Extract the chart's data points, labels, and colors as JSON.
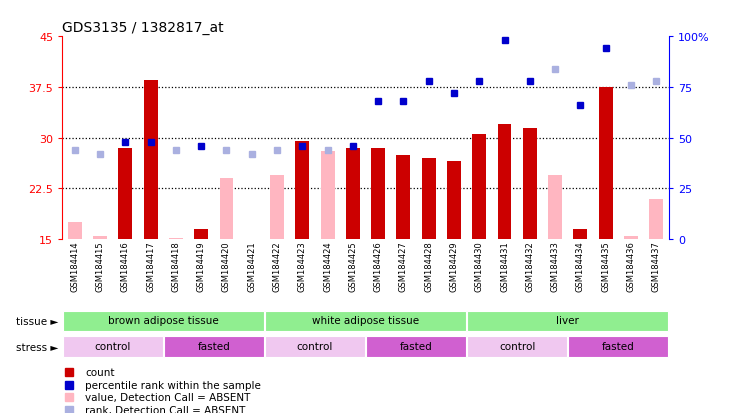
{
  "title": "GDS3135 / 1382817_at",
  "samples": [
    "GSM184414",
    "GSM184415",
    "GSM184416",
    "GSM184417",
    "GSM184418",
    "GSM184419",
    "GSM184420",
    "GSM184421",
    "GSM184422",
    "GSM184423",
    "GSM184424",
    "GSM184425",
    "GSM184426",
    "GSM184427",
    "GSM184428",
    "GSM184429",
    "GSM184430",
    "GSM184431",
    "GSM184432",
    "GSM184433",
    "GSM184434",
    "GSM184435",
    "GSM184436",
    "GSM184437"
  ],
  "count_present": [
    null,
    null,
    28.5,
    38.5,
    null,
    16.5,
    null,
    null,
    null,
    29.5,
    null,
    28.5,
    28.5,
    27.5,
    27.0,
    26.5,
    30.5,
    32.0,
    31.5,
    null,
    16.5,
    37.5,
    null,
    null
  ],
  "count_absent": [
    17.5,
    15.5,
    null,
    null,
    15.2,
    null,
    24.0,
    null,
    24.5,
    null,
    28.0,
    null,
    null,
    null,
    null,
    null,
    null,
    null,
    null,
    24.5,
    null,
    null,
    15.5,
    21.0
  ],
  "rank_present": [
    null,
    null,
    48,
    48,
    null,
    46,
    null,
    null,
    null,
    46,
    null,
    46,
    68,
    68,
    78,
    72,
    78,
    98,
    78,
    null,
    66,
    94,
    null,
    null
  ],
  "rank_absent": [
    44,
    42,
    null,
    null,
    44,
    null,
    44,
    42,
    44,
    null,
    44,
    null,
    null,
    null,
    null,
    null,
    null,
    null,
    null,
    84,
    null,
    null,
    76,
    78
  ],
  "ylim_left": [
    15,
    45
  ],
  "ylim_right": [
    0,
    100
  ],
  "yticks_left": [
    15,
    22.5,
    30,
    37.5,
    45
  ],
  "yticks_right": [
    0,
    25,
    50,
    75,
    100
  ],
  "color_present_bar": "#cc0000",
  "color_absent_bar": "#ffb6c1",
  "color_present_rank": "#0000cc",
  "color_absent_rank": "#aab0e0",
  "bar_width": 0.55,
  "tissue_groups": [
    {
      "label": "brown adipose tissue",
      "start": 0,
      "end": 8
    },
    {
      "label": "white adipose tissue",
      "start": 8,
      "end": 16
    },
    {
      "label": "liver",
      "start": 16,
      "end": 24
    }
  ],
  "stress_groups": [
    {
      "label": "control",
      "start": 0,
      "end": 4
    },
    {
      "label": "fasted",
      "start": 4,
      "end": 8
    },
    {
      "label": "control",
      "start": 8,
      "end": 12
    },
    {
      "label": "fasted",
      "start": 12,
      "end": 16
    },
    {
      "label": "control",
      "start": 16,
      "end": 20
    },
    {
      "label": "fasted",
      "start": 20,
      "end": 24
    }
  ],
  "stress_colors": [
    "#f0c8f0",
    "#d060d0",
    "#f0c8f0",
    "#d060d0",
    "#f0c8f0",
    "#d060d0"
  ],
  "tissue_color": "#90ee90",
  "plot_bg": "#ffffff",
  "fig_bg": "#ffffff"
}
